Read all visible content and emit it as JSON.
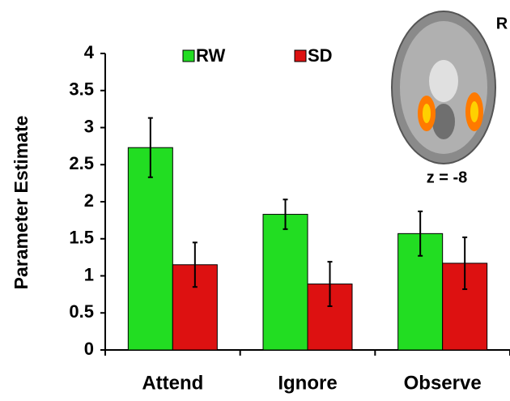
{
  "chart_data": {
    "type": "bar",
    "y_label": "Parameter Estimate",
    "categories": [
      "Attend",
      "Ignore",
      "Observe"
    ],
    "series": [
      {
        "name": "RW",
        "color": "#22dd22",
        "values": [
          2.73,
          1.83,
          1.57
        ],
        "errors": [
          0.4,
          0.2,
          0.3
        ]
      },
      {
        "name": "SD",
        "color": "#dd1111",
        "values": [
          1.15,
          0.89,
          1.17
        ],
        "errors": [
          0.3,
          0.3,
          0.35
        ]
      }
    ],
    "ylim": [
      0,
      4
    ],
    "yticks": [
      0,
      0.5,
      1,
      1.5,
      2,
      2.5,
      3,
      3.5,
      4
    ],
    "annotations": [
      "R",
      "z = -8"
    ]
  }
}
